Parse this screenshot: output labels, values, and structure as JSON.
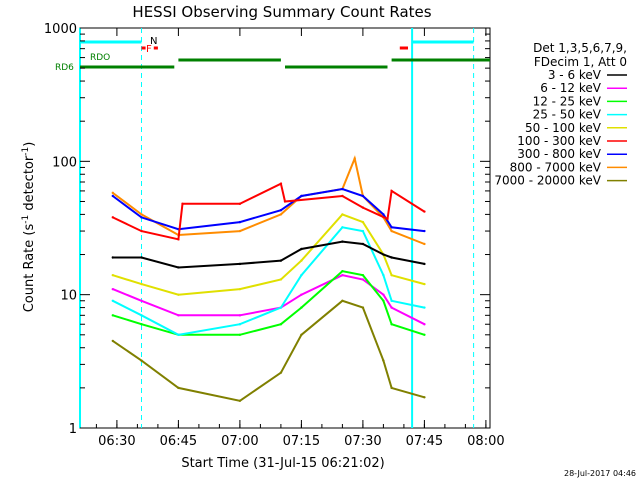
{
  "chart_data": {
    "type": "line",
    "title": "HESSI Observing Summary Count Rates",
    "xlabel": "Start Time (31-Jul-15 06:21:02)",
    "ylabel_main": "Count Rate (s",
    "ylabel_sup1": "-1",
    "ylabel_mid": " detector",
    "ylabel_sup2": "-1",
    "ylabel_end": ")",
    "yscale": "log",
    "ylim": [
      1,
      1000
    ],
    "xlim_minutes": [
      "06:21",
      "08:01"
    ],
    "x_ticks": [
      "06:30",
      "06:45",
      "07:00",
      "07:15",
      "07:30",
      "07:45",
      "08:00"
    ],
    "y_ticks": [
      "1",
      "10",
      "100",
      "1000"
    ],
    "timestamp": "28-Jul-2017 04:46",
    "legend": {
      "header1": "Det 1,3,5,6,7,9,",
      "header2": "FDecim 1, Att 0",
      "entries": [
        {
          "label": "3 - 6 keV",
          "color": "#000000"
        },
        {
          "label": "6 - 12 keV",
          "color": "#ff00ff"
        },
        {
          "label": "12 - 25 keV",
          "color": "#00ff00"
        },
        {
          "label": "25 - 50 keV",
          "color": "#00ffff"
        },
        {
          "label": "50 - 100 keV",
          "color": "#e0e000"
        },
        {
          "label": "100 - 300 keV",
          "color": "#ff0000"
        },
        {
          "label": "300 - 800 keV",
          "color": "#0000ff"
        },
        {
          "label": "800 - 7000 keV",
          "color": "#ff8c00"
        },
        {
          "label": "7000 - 20000 keV",
          "color": "#808000"
        }
      ]
    },
    "flags": {
      "n_label": "N",
      "f_label": "F",
      "rdo_label": "RDO",
      "rd6_label": "RD6",
      "night_bars": [
        [
          "06:21",
          "06:36"
        ],
        [
          "07:42",
          "07:57"
        ]
      ],
      "night_line_color": "#00ffff",
      "flare_marks": [
        [
          "06:36",
          "06:37"
        ],
        [
          "06:39",
          "06:40"
        ],
        [
          "07:39",
          "07:41"
        ]
      ],
      "flare_color": "#ff0000",
      "rd6_segments": [
        [
          "06:21",
          "06:44"
        ],
        [
          "06:45",
          "07:10"
        ],
        [
          "07:11",
          "07:36"
        ],
        [
          "07:37",
          "08:01"
        ]
      ],
      "rd6_color": "#008000",
      "night_boundaries": [
        "06:21",
        "06:36",
        "07:42",
        "07:57"
      ]
    },
    "series": [
      {
        "name": "3 - 6 keV",
        "color": "#000000",
        "x": [
          "06:29",
          "06:36",
          "06:45",
          "07:00",
          "07:10",
          "07:15",
          "07:25",
          "07:30",
          "07:35",
          "07:37",
          "07:45"
        ],
        "values": [
          19,
          19,
          16,
          17,
          18,
          22,
          25,
          24,
          20,
          19,
          17
        ]
      },
      {
        "name": "6 - 12 keV",
        "color": "#ff00ff",
        "x": [
          "06:29",
          "06:36",
          "06:45",
          "07:00",
          "07:10",
          "07:15",
          "07:25",
          "07:30",
          "07:35",
          "07:37",
          "07:45"
        ],
        "values": [
          11,
          9,
          7,
          7,
          8,
          10,
          14,
          13,
          10,
          8,
          6
        ]
      },
      {
        "name": "12 - 25 keV",
        "color": "#00ff00",
        "x": [
          "06:29",
          "06:36",
          "06:45",
          "07:00",
          "07:10",
          "07:15",
          "07:25",
          "07:30",
          "07:35",
          "07:37",
          "07:45"
        ],
        "values": [
          7,
          6,
          5,
          5,
          6,
          8,
          15,
          14,
          9,
          6,
          5
        ]
      },
      {
        "name": "25 - 50 keV",
        "color": "#00ffff",
        "x": [
          "06:29",
          "06:36",
          "06:45",
          "07:00",
          "07:10",
          "07:15",
          "07:25",
          "07:30",
          "07:35",
          "07:37",
          "07:45"
        ],
        "values": [
          9,
          7,
          5,
          6,
          8,
          14,
          32,
          30,
          14,
          9,
          8
        ]
      },
      {
        "name": "50 - 100 keV",
        "color": "#e0e000",
        "x": [
          "06:29",
          "06:36",
          "06:45",
          "07:00",
          "07:10",
          "07:15",
          "07:25",
          "07:30",
          "07:35",
          "07:37",
          "07:45"
        ],
        "values": [
          14,
          12,
          10,
          11,
          13,
          18,
          40,
          35,
          20,
          14,
          12
        ]
      },
      {
        "name": "100 - 300 keV",
        "color": "#ff0000",
        "x": [
          "06:29",
          "06:36",
          "06:45",
          "06:46",
          "07:00",
          "07:10",
          "07:11",
          "07:25",
          "07:30",
          "07:36",
          "07:37",
          "07:45"
        ],
        "values": [
          38,
          30,
          26,
          48,
          48,
          68,
          50,
          55,
          45,
          37,
          60,
          42
        ]
      },
      {
        "name": "300 - 800 keV",
        "color": "#0000ff",
        "x": [
          "06:29",
          "06:36",
          "06:45",
          "07:00",
          "07:10",
          "07:15",
          "07:25",
          "07:30",
          "07:35",
          "07:37",
          "07:45"
        ],
        "values": [
          55,
          38,
          31,
          35,
          43,
          55,
          62,
          55,
          40,
          32,
          30
        ]
      },
      {
        "name": "800 - 7000 keV",
        "color": "#ff8c00",
        "x": [
          "06:29",
          "06:36",
          "06:45",
          "07:00",
          "07:10",
          "07:15",
          "07:25",
          "07:28",
          "07:30",
          "07:35",
          "07:37",
          "07:45"
        ],
        "values": [
          58,
          40,
          28,
          30,
          40,
          55,
          62,
          105,
          55,
          38,
          30,
          24
        ]
      },
      {
        "name": "7000 - 20000 keV",
        "color": "#808000",
        "x": [
          "06:29",
          "06:36",
          "06:45",
          "07:00",
          "07:10",
          "07:15",
          "07:25",
          "07:30",
          "07:35",
          "07:37",
          "07:45"
        ],
        "values": [
          4.5,
          3.2,
          2,
          1.6,
          2.6,
          5,
          9,
          8,
          3.2,
          2,
          1.7
        ]
      }
    ]
  }
}
